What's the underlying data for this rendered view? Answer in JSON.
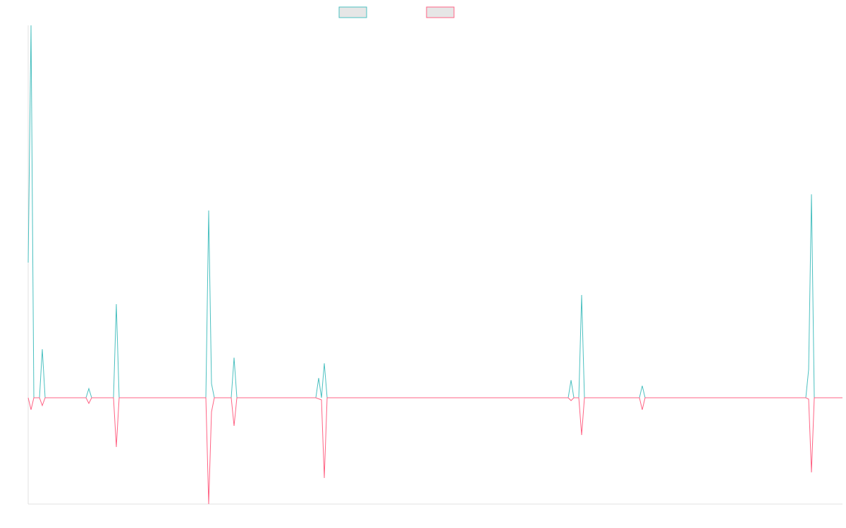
{
  "chart_data": {
    "type": "line",
    "xlim": [
      0,
      1155
    ],
    "ylim": [
      -151,
      529
    ],
    "series": [
      {
        "color": "rgb(75, 192, 192)",
        "x": [
          0,
          4,
          8,
          16,
          20,
          24,
          82,
          86,
          90,
          121,
          125,
          129,
          252,
          256,
          260,
          264,
          288,
          292,
          296,
          408,
          412,
          416,
          420,
          424,
          766,
          770,
          774,
          781,
          785,
          789,
          867,
          871,
          875,
          1061,
          1065,
          1103,
          1107,
          1111,
          1115,
          1155
        ],
        "values": [
          192,
          529,
          0,
          0,
          69,
          0,
          0,
          13,
          0,
          0,
          133,
          0,
          0,
          266,
          20,
          0,
          0,
          57,
          0,
          0,
          28,
          0,
          49,
          0,
          0,
          25,
          0,
          0,
          146,
          0,
          0,
          17,
          0,
          0,
          0,
          0,
          40,
          289,
          0,
          0
        ]
      },
      {
        "color": "rgb(255, 99, 132)",
        "x": [
          0,
          4,
          8,
          16,
          20,
          24,
          82,
          86,
          90,
          121,
          125,
          129,
          252,
          256,
          260,
          264,
          288,
          292,
          296,
          408,
          416,
          420,
          424,
          766,
          770,
          774,
          781,
          785,
          789,
          867,
          871,
          875,
          1103,
          1107,
          1111,
          1115,
          1155
        ],
        "values": [
          0,
          -17,
          0,
          0,
          -11,
          0,
          0,
          -8,
          0,
          0,
          -70,
          0,
          0,
          -151,
          -20,
          0,
          0,
          -40,
          0,
          0,
          -3,
          -114,
          0,
          0,
          -4,
          0,
          0,
          -53,
          0,
          0,
          -17,
          0,
          0,
          -2,
          -106,
          0,
          0
        ]
      }
    ]
  }
}
